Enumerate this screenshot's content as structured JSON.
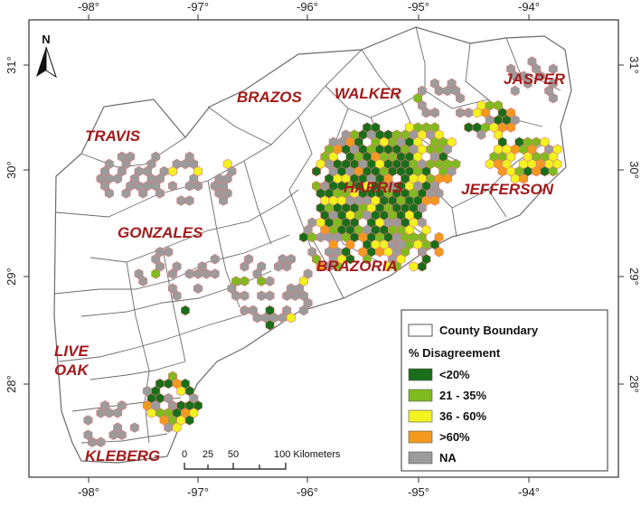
{
  "map": {
    "north_label": "N",
    "longitude_ticks": [
      {
        "value": -98,
        "label": "-98°"
      },
      {
        "value": -97,
        "label": "-97°"
      },
      {
        "value": -96,
        "label": "-96°"
      },
      {
        "value": -95,
        "label": "-95°"
      },
      {
        "value": -94,
        "label": "-94°"
      }
    ],
    "latitude_ticks": [
      {
        "value": 31,
        "label": "31°"
      },
      {
        "value": 30,
        "label": "30°"
      },
      {
        "value": 29,
        "label": "29°"
      },
      {
        "value": 28,
        "label": "28°"
      }
    ],
    "counties": [
      {
        "id": "travis",
        "label": "TRAVIS"
      },
      {
        "id": "gonzales",
        "label": "GONZALES"
      },
      {
        "id": "brazos",
        "label": "BRAZOS"
      },
      {
        "id": "walker",
        "label": "WALKER"
      },
      {
        "id": "jasper",
        "label": "JASPER"
      },
      {
        "id": "harris",
        "label": "HARRIS"
      },
      {
        "id": "jefferson",
        "label": "JEFFERSON"
      },
      {
        "id": "brazoria",
        "label": "BRAZORIA"
      },
      {
        "id": "live-oak",
        "label": "LIVE OAK",
        "lines": [
          "LIVE",
          "OAK"
        ]
      },
      {
        "id": "kleberg",
        "label": "KLEBERG"
      }
    ],
    "scale_bar": {
      "labels": [
        "0",
        "25",
        "50",
        "100 Kilometers"
      ]
    },
    "legend": {
      "boundary_label": "County Boundary",
      "title": "% Disagreement",
      "items": [
        {
          "key": "lt20",
          "label": "<20%",
          "color": "#1a6e1a"
        },
        {
          "key": "21to35",
          "label": "21 - 35%",
          "color": "#7fba1e"
        },
        {
          "key": "36to60",
          "label": "36 - 60%",
          "color": "#f2f21e"
        },
        {
          "key": "gt60",
          "label": ">60%",
          "color": "#f39a1e"
        },
        {
          "key": "na",
          "label": "NA",
          "color": "#9b9b9b"
        }
      ]
    },
    "colors": {
      "boundary": "#6b6b6b",
      "hex_outline": "#e07a7a",
      "label": "#a31a1a"
    }
  }
}
